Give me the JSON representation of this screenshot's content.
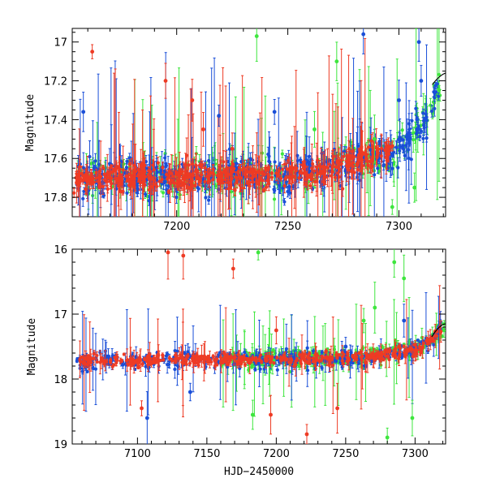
{
  "chart_data": [
    {
      "type": "scatter",
      "title": "",
      "xlabel": "",
      "ylabel": "Magnitude",
      "xlim": [
        7153,
        7321
      ],
      "ylim": [
        17.9,
        16.93
      ],
      "y_inverted": true,
      "xticks_labeled": [
        7200,
        7250,
        7300
      ],
      "yticks_labeled": [
        17,
        17.2,
        17.4,
        17.6,
        17.8
      ],
      "ytick_labels": [
        "17",
        "17.2",
        "17.4",
        "17.6",
        "17.8"
      ],
      "xtick_minor_step": 10,
      "ytick_minor_step": 0.05,
      "series": [
        {
          "name": "blue",
          "color": "#1a4fd8"
        },
        {
          "name": "green",
          "color": "#3ee63e"
        },
        {
          "name": "red",
          "color": "#ee3b24"
        }
      ],
      "model_curve_start": [
        7315,
        17.22
      ],
      "model_curve_end": [
        7321,
        17.16
      ],
      "outliers": [
        {
          "series": "blue",
          "x": 7284,
          "y": 16.96
        },
        {
          "series": "blue",
          "x": 7309,
          "y": 17.0
        },
        {
          "series": "blue",
          "x": 7310,
          "y": 17.2
        },
        {
          "series": "blue",
          "x": 7300,
          "y": 17.3
        },
        {
          "series": "blue",
          "x": 7244,
          "y": 17.36
        },
        {
          "series": "blue",
          "x": 7158,
          "y": 17.36
        },
        {
          "series": "blue",
          "x": 7219,
          "y": 17.38
        },
        {
          "series": "green",
          "x": 7236,
          "y": 16.97
        },
        {
          "series": "green",
          "x": 7272,
          "y": 17.1
        },
        {
          "series": "green",
          "x": 7262,
          "y": 17.45
        },
        {
          "series": "green",
          "x": 7289,
          "y": 17.5
        },
        {
          "series": "green",
          "x": 7307,
          "y": 17.75
        },
        {
          "series": "green",
          "x": 7297,
          "y": 17.85
        },
        {
          "series": "red",
          "x": 7162,
          "y": 17.05
        },
        {
          "series": "red",
          "x": 7195,
          "y": 17.2
        },
        {
          "series": "red",
          "x": 7207,
          "y": 17.3
        },
        {
          "series": "red",
          "x": 7212,
          "y": 17.45
        },
        {
          "series": "red",
          "x": 7225,
          "y": 17.55
        }
      ]
    },
    {
      "type": "scatter",
      "title": "",
      "xlabel": "HJD−2450000",
      "ylabel": "Magnitude",
      "xlim": [
        7053,
        7322
      ],
      "ylim": [
        19,
        16
      ],
      "y_inverted": true,
      "xticks_labeled": [
        7100,
        7150,
        7200,
        7250,
        7300
      ],
      "yticks_labeled": [
        16,
        17,
        18,
        19
      ],
      "ytick_labels": [
        "16",
        "17",
        "18",
        "19"
      ],
      "xtick_minor_step": 10,
      "ytick_minor_step": 0.2,
      "series": [
        {
          "name": "blue",
          "color": "#1a4fd8"
        },
        {
          "name": "green",
          "color": "#3ee63e"
        },
        {
          "name": "red",
          "color": "#ee3b24"
        }
      ],
      "model_curve_start": [
        7312,
        17.35
      ],
      "model_curve_end": [
        7322,
        17.15
      ],
      "outliers": [
        {
          "series": "red",
          "x": 7122,
          "y": 16.05
        },
        {
          "series": "red",
          "x": 7133,
          "y": 16.1
        },
        {
          "series": "red",
          "x": 7169,
          "y": 16.3
        },
        {
          "series": "red",
          "x": 7200,
          "y": 17.25
        },
        {
          "series": "red",
          "x": 7103,
          "y": 18.45
        },
        {
          "series": "red",
          "x": 7196,
          "y": 18.55
        },
        {
          "series": "red",
          "x": 7222,
          "y": 18.85
        },
        {
          "series": "red",
          "x": 7244,
          "y": 18.45
        },
        {
          "series": "green",
          "x": 7187,
          "y": 16.05
        },
        {
          "series": "green",
          "x": 7285,
          "y": 16.2
        },
        {
          "series": "green",
          "x": 7292,
          "y": 16.45
        },
        {
          "series": "green",
          "x": 7271,
          "y": 16.9
        },
        {
          "series": "green",
          "x": 7263,
          "y": 17.1
        },
        {
          "series": "green",
          "x": 7183,
          "y": 18.55
        },
        {
          "series": "green",
          "x": 7280,
          "y": 18.9
        },
        {
          "series": "green",
          "x": 7298,
          "y": 18.6
        },
        {
          "series": "blue",
          "x": 7079,
          "y": 17.65
        },
        {
          "series": "blue",
          "x": 7250,
          "y": 17.5
        },
        {
          "series": "blue",
          "x": 7292,
          "y": 17.1
        },
        {
          "series": "blue",
          "x": 7107,
          "y": 18.6
        },
        {
          "series": "blue",
          "x": 7138,
          "y": 18.2
        }
      ]
    }
  ]
}
